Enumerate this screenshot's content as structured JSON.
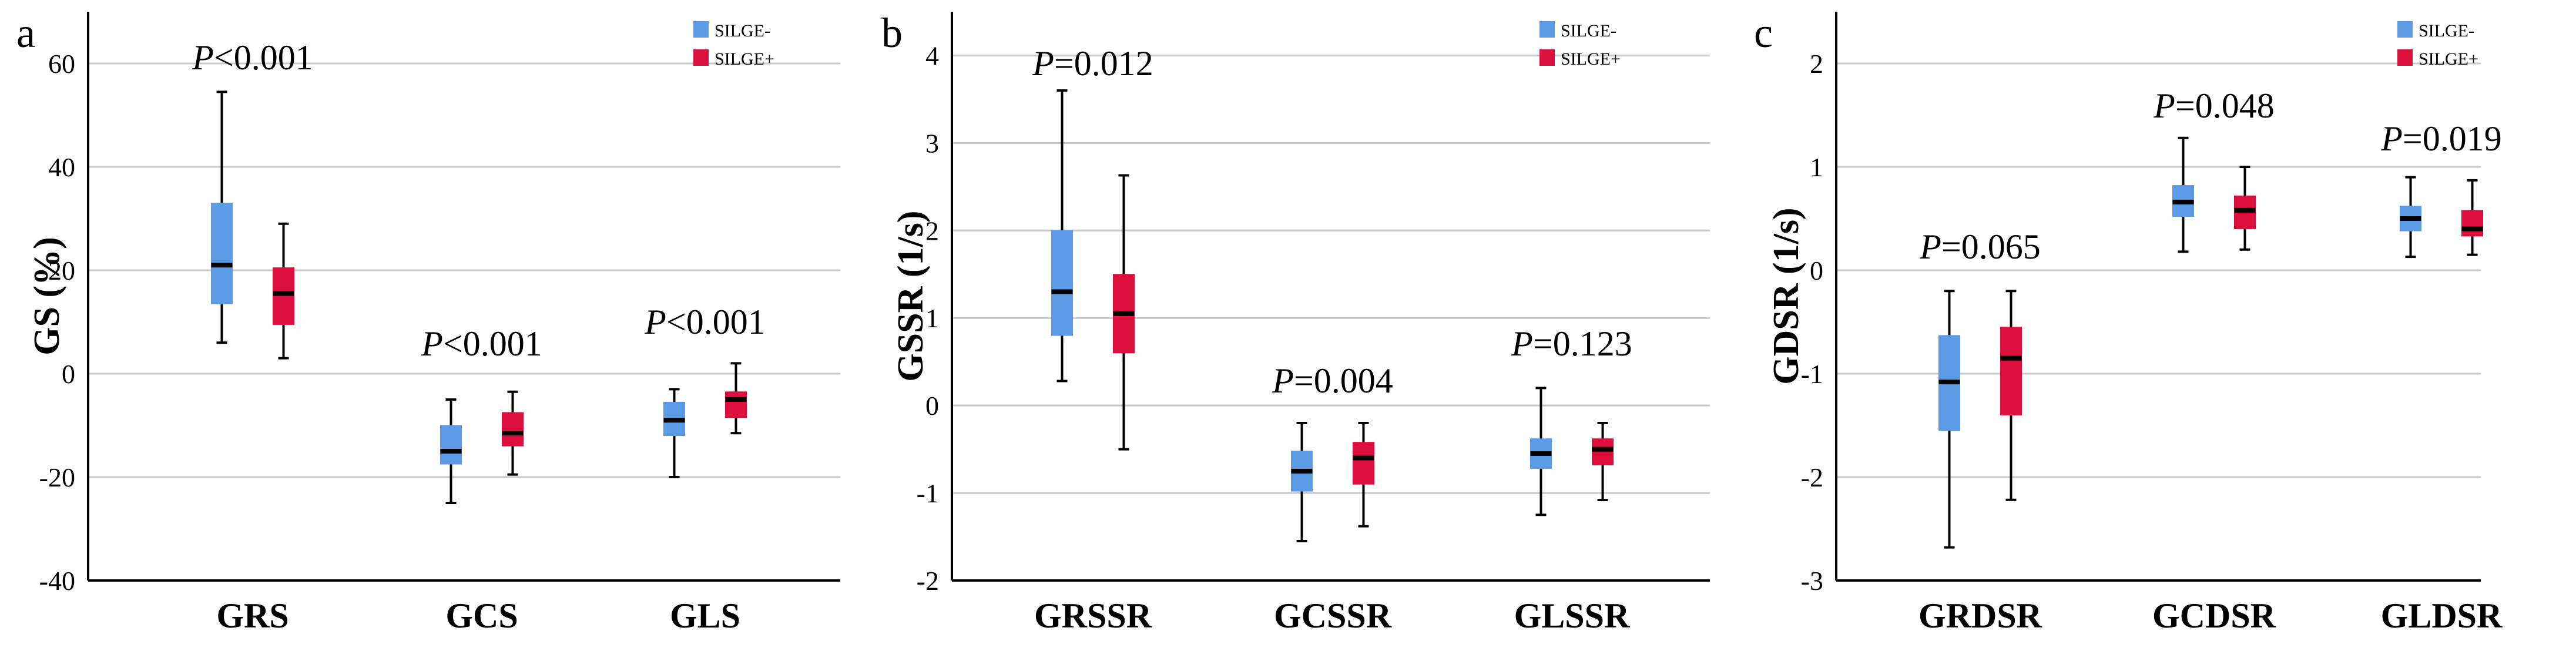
{
  "chart_data": [
    {
      "type": "box",
      "panel_label": "a",
      "ylabel": "GS (%)",
      "ylim": [
        -40,
        70
      ],
      "yticks": [
        -40,
        -20,
        0,
        20,
        40,
        60
      ],
      "legend": [
        "SILGE-",
        "SILGE+"
      ],
      "legend_position": "top-right",
      "colors": {
        "SILGE-": "#5b9be6",
        "SILGE+": "#dc0f3c"
      },
      "categories": [
        "GRS",
        "GCS",
        "GLS"
      ],
      "p_values": [
        {
          "prefix": "P",
          "text": "<0.001"
        },
        {
          "prefix": "P",
          "text": "<0.001"
        },
        {
          "prefix": "P",
          "text": "<0.001"
        }
      ],
      "series": [
        {
          "name": "SILGE-",
          "boxes": [
            {
              "min": 6,
              "q1": 13.5,
              "median": 21,
              "q3": 33,
              "max": 54.5
            },
            {
              "min": -25,
              "q1": -17.5,
              "median": -15,
              "q3": -10,
              "max": -5
            },
            {
              "min": -20,
              "q1": -12,
              "median": -9,
              "q3": -5.5,
              "max": -3
            }
          ]
        },
        {
          "name": "SILGE+",
          "boxes": [
            {
              "min": 3,
              "q1": 9.5,
              "median": 15.5,
              "q3": 20.5,
              "max": 29
            },
            {
              "min": -19.5,
              "q1": -14,
              "median": -11.5,
              "q3": -7.5,
              "max": -3.5
            },
            {
              "min": -11.5,
              "q1": -8.5,
              "median": -5,
              "q3": -3.5,
              "max": 2
            }
          ]
        }
      ]
    },
    {
      "type": "box",
      "panel_label": "b",
      "ylabel": "GSSR (1/s)",
      "ylim": [
        -2,
        4.5
      ],
      "yticks": [
        -2,
        -1,
        0,
        1,
        2,
        3,
        4
      ],
      "legend": [
        "SILGE-",
        "SILGE+"
      ],
      "legend_position": "top-right",
      "colors": {
        "SILGE-": "#5b9be6",
        "SILGE+": "#dc0f3c"
      },
      "categories": [
        "GRSSR",
        "GCSSR",
        "GLSSR"
      ],
      "p_values": [
        {
          "prefix": "P",
          "text": "=0.012"
        },
        {
          "prefix": "P",
          "text": "=0.004"
        },
        {
          "prefix": "P",
          "text": "=0.123"
        }
      ],
      "series": [
        {
          "name": "SILGE-",
          "boxes": [
            {
              "min": 0.28,
              "q1": 0.8,
              "median": 1.3,
              "q3": 2,
              "max": 3.6
            },
            {
              "min": -1.55,
              "q1": -0.98,
              "median": -0.75,
              "q3": -0.52,
              "max": -0.2
            },
            {
              "min": -1.25,
              "q1": -0.72,
              "median": -0.55,
              "q3": -0.38,
              "max": 0.2
            }
          ]
        },
        {
          "name": "SILGE+",
          "boxes": [
            {
              "min": -0.5,
              "q1": 0.6,
              "median": 1.05,
              "q3": 1.5,
              "max": 2.63
            },
            {
              "min": -1.38,
              "q1": -0.9,
              "median": -0.6,
              "q3": -0.42,
              "max": -0.2
            },
            {
              "min": -1.08,
              "q1": -0.68,
              "median": -0.5,
              "q3": -0.38,
              "max": -0.2
            }
          ]
        }
      ]
    },
    {
      "type": "box",
      "panel_label": "c",
      "ylabel": "GDSR (1/s)",
      "ylim": [
        -3,
        2.5
      ],
      "yticks": [
        -3,
        -2,
        -1,
        0,
        1,
        2
      ],
      "legend": [
        "SILGE-",
        "SILGE+"
      ],
      "legend_position": "top-right",
      "colors": {
        "SILGE-": "#5b9be6",
        "SILGE+": "#dc0f3c"
      },
      "categories": [
        "GRDSR",
        "GCDSR",
        "GLDSR"
      ],
      "p_values": [
        {
          "prefix": "P",
          "text": "=0.065"
        },
        {
          "prefix": "P",
          "text": "=0.048"
        },
        {
          "prefix": "P",
          "text": "=0.019"
        }
      ],
      "series": [
        {
          "name": "SILGE-",
          "boxes": [
            {
              "min": -2.68,
              "q1": -1.55,
              "median": -1.08,
              "q3": -0.63,
              "max": -0.2
            },
            {
              "min": 0.18,
              "q1": 0.52,
              "median": 0.66,
              "q3": 0.82,
              "max": 1.28
            },
            {
              "min": 0.13,
              "q1": 0.38,
              "median": 0.5,
              "q3": 0.62,
              "max": 0.9
            }
          ]
        },
        {
          "name": "SILGE+",
          "boxes": [
            {
              "min": -2.22,
              "q1": -1.4,
              "median": -0.85,
              "q3": -0.55,
              "max": -0.2
            },
            {
              "min": 0.2,
              "q1": 0.4,
              "median": 0.58,
              "q3": 0.72,
              "max": 1
            },
            {
              "min": 0.15,
              "q1": 0.33,
              "median": 0.4,
              "q3": 0.58,
              "max": 0.87
            }
          ]
        }
      ]
    }
  ]
}
